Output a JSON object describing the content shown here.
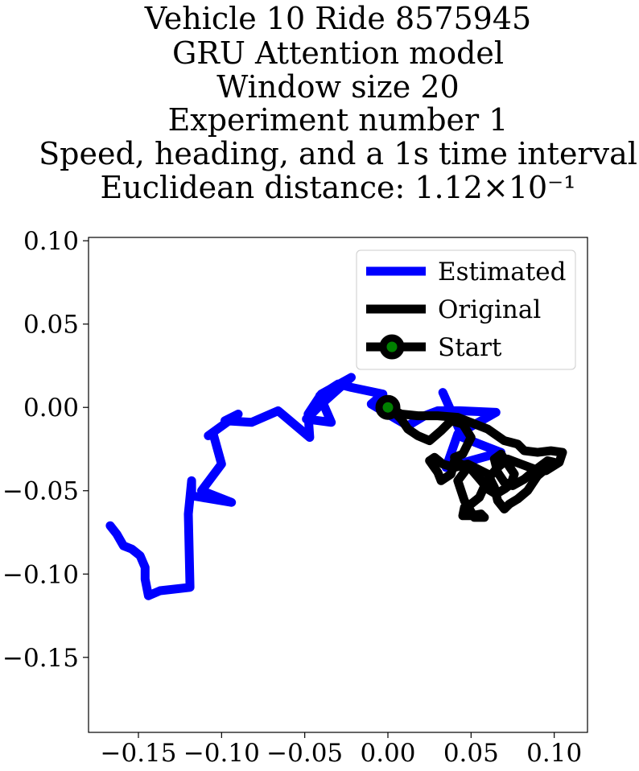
{
  "chart_data": {
    "type": "line",
    "title_lines": [
      "Vehicle 10 Ride 8575945",
      "GRU Attention model",
      "Window size 20",
      "Experiment number 1",
      "Speed, heading, and a 1s time interval",
      "Euclidean distance: 1.12×10⁻¹"
    ],
    "xlabel": "",
    "ylabel": "",
    "xlim": [
      -0.18,
      0.12
    ],
    "ylim": [
      -0.195,
      0.102
    ],
    "xticks": [
      -0.15,
      -0.1,
      -0.05,
      0.0,
      0.05,
      0.1
    ],
    "xtick_labels": [
      "−0.15",
      "−0.10",
      "−0.05",
      "0.00",
      "0.05",
      "0.10"
    ],
    "yticks": [
      0.1,
      0.05,
      0.0,
      -0.05,
      -0.1,
      -0.15
    ],
    "ytick_labels": [
      "0.10",
      "0.05",
      "0.00",
      "−0.05",
      "−0.10",
      "−0.15"
    ],
    "grid": false,
    "legend_position": "top-right",
    "series": [
      {
        "name": "Estimated",
        "color": "#0000ff",
        "x": [
          -0.167,
          -0.163,
          -0.159,
          -0.154,
          -0.149,
          -0.146,
          -0.146,
          -0.144,
          -0.137,
          -0.119,
          -0.12,
          -0.118,
          -0.118,
          -0.112,
          -0.094,
          -0.112,
          -0.1,
          -0.105,
          -0.108,
          -0.09,
          -0.098,
          -0.082,
          -0.066,
          -0.047,
          -0.048,
          -0.04,
          -0.022,
          -0.04,
          -0.049,
          -0.034,
          -0.041,
          -0.03,
          -0.022,
          -0.003,
          -0.01,
          0.0,
          0.005,
          0.012,
          0.022,
          0.03,
          0.043,
          0.065,
          0.042,
          0.035,
          0.068,
          0.055,
          0.045,
          0.033
        ],
        "y": [
          -0.071,
          -0.076,
          -0.083,
          -0.085,
          -0.089,
          -0.096,
          -0.103,
          -0.113,
          -0.11,
          -0.108,
          -0.064,
          -0.044,
          -0.053,
          -0.054,
          -0.057,
          -0.05,
          -0.034,
          -0.016,
          -0.017,
          -0.004,
          -0.008,
          -0.009,
          -0.002,
          -0.018,
          -0.004,
          0.008,
          0.018,
          0.002,
          -0.007,
          -0.009,
          0.007,
          0.014,
          0.012,
          0.008,
          0.002,
          -0.004,
          -0.007,
          -0.011,
          -0.005,
          -0.002,
          -0.002,
          -0.003,
          -0.016,
          -0.036,
          -0.027,
          -0.022,
          -0.018,
          0.009
        ]
      },
      {
        "name": "Original",
        "color": "#000000",
        "x": [
          0.0,
          0.008,
          0.018,
          0.03,
          0.042,
          0.06,
          0.07,
          0.078,
          0.082,
          0.09,
          0.098,
          0.105,
          0.103,
          0.095,
          0.088,
          0.08,
          0.072,
          0.066,
          0.06,
          0.055,
          0.05,
          0.046,
          0.045,
          0.05,
          0.056,
          0.058,
          0.052,
          0.046,
          0.042,
          0.048,
          0.04,
          0.038,
          0.032,
          0.03,
          0.025,
          0.028,
          0.033,
          0.04,
          0.048,
          0.052,
          0.06,
          0.064,
          0.066,
          0.07,
          0.073,
          0.078,
          0.084,
          0.09,
          0.096,
          0.1,
          0.096,
          0.088,
          0.082,
          0.075,
          0.07,
          0.066,
          0.064,
          0.068,
          0.072,
          0.076,
          0.074,
          0.07,
          0.065,
          0.06,
          0.056,
          0.05,
          0.042,
          0.04,
          0.045,
          0.05,
          0.045,
          0.038,
          0.032,
          0.025,
          0.018,
          0.012,
          0.008,
          0.004
        ],
        "y": [
          0.0,
          -0.004,
          -0.005,
          -0.005,
          -0.006,
          -0.013,
          -0.02,
          -0.022,
          -0.026,
          -0.027,
          -0.026,
          -0.027,
          -0.033,
          -0.038,
          -0.037,
          -0.034,
          -0.031,
          -0.036,
          -0.043,
          -0.054,
          -0.058,
          -0.06,
          -0.065,
          -0.065,
          -0.064,
          -0.066,
          -0.066,
          -0.056,
          -0.044,
          -0.036,
          -0.032,
          -0.04,
          -0.044,
          -0.039,
          -0.032,
          -0.03,
          -0.034,
          -0.036,
          -0.034,
          -0.036,
          -0.04,
          -0.048,
          -0.056,
          -0.061,
          -0.058,
          -0.055,
          -0.05,
          -0.041,
          -0.036,
          -0.033,
          -0.032,
          -0.038,
          -0.043,
          -0.047,
          -0.045,
          -0.039,
          -0.031,
          -0.028,
          -0.034,
          -0.04,
          -0.046,
          -0.049,
          -0.052,
          -0.049,
          -0.044,
          -0.037,
          -0.033,
          -0.03,
          -0.028,
          -0.018,
          -0.01,
          -0.008,
          -0.014,
          -0.02,
          -0.017,
          -0.013,
          -0.007,
          -0.003
        ]
      }
    ],
    "start_marker": {
      "name": "Start",
      "x": 0.0,
      "y": 0.0,
      "face": "#008000",
      "edge": "#000000"
    },
    "legend": [
      {
        "label": "Estimated",
        "color": "#0000ff",
        "marker": false
      },
      {
        "label": "Original",
        "color": "#000000",
        "marker": false
      },
      {
        "label": "Start",
        "color": "#000000",
        "marker": true,
        "marker_face": "#008000"
      }
    ]
  }
}
